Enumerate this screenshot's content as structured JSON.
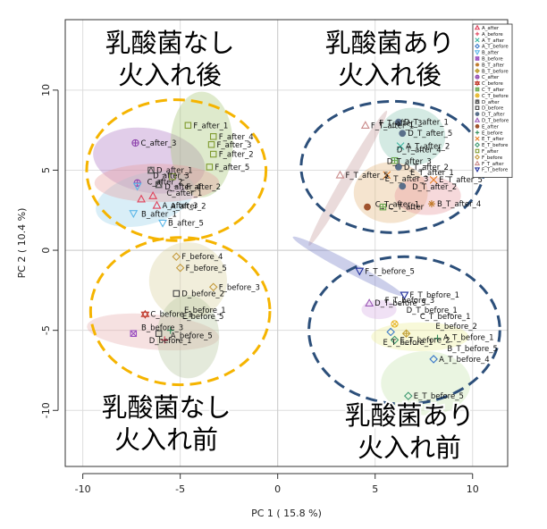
{
  "chart_data": {
    "type": "scatter",
    "title": "",
    "xlabel": "PC 1 ( 15.8 %)",
    "ylabel": "PC 2 ( 10.4 %)",
    "xlim": [
      -10.9,
      11.8
    ],
    "ylim": [
      -13.5,
      14.4
    ],
    "xticks": [
      -10,
      -5,
      0,
      5,
      10
    ],
    "yticks": [
      -10,
      -5,
      0,
      5,
      10
    ],
    "grid": true,
    "legend_position": "top-right",
    "legend": [
      {
        "name": "A_after",
        "color": "#e0405a",
        "marker": "triangle"
      },
      {
        "name": "A_before",
        "color": "#e0405a",
        "marker": "plus"
      },
      {
        "name": "A_T_after",
        "color": "#39b5a0",
        "marker": "cross"
      },
      {
        "name": "A_T_before",
        "color": "#3a78c9",
        "marker": "diamond"
      },
      {
        "name": "B_after",
        "color": "#5bb6e8",
        "marker": "triangle-down"
      },
      {
        "name": "B_before",
        "color": "#9a4fc0",
        "marker": "square-cross"
      },
      {
        "name": "B_T_after",
        "color": "#c07a2a",
        "marker": "star"
      },
      {
        "name": "B_T_before",
        "color": "#c2a23a",
        "marker": "diamond-plus"
      },
      {
        "name": "C_after",
        "color": "#8e44ad",
        "marker": "circle-plus"
      },
      {
        "name": "C_before",
        "color": "#c0392b",
        "marker": "star-of-david"
      },
      {
        "name": "C_T_after",
        "color": "#6aa84f",
        "marker": "square-plus"
      },
      {
        "name": "C_T_before",
        "color": "#e6b422",
        "marker": "circle-cross"
      },
      {
        "name": "D_after",
        "color": "#555555",
        "marker": "triangle-square"
      },
      {
        "name": "D_before",
        "color": "#444444",
        "marker": "square"
      },
      {
        "name": "D_T_after",
        "color": "#5a6f8a",
        "marker": "circle"
      },
      {
        "name": "D_T_before",
        "color": "#9b59b6",
        "marker": "triangle"
      },
      {
        "name": "E_after",
        "color": "#a0522d",
        "marker": "circle"
      },
      {
        "name": "E_before",
        "color": "#2e8b57",
        "marker": "plus"
      },
      {
        "name": "E_T_after",
        "color": "#e67e22",
        "marker": "cross"
      },
      {
        "name": "E_T_before",
        "color": "#3d9970",
        "marker": "diamond"
      },
      {
        "name": "F_after",
        "color": "#7f9a2e",
        "marker": "square"
      },
      {
        "name": "F_before",
        "color": "#c49a3c",
        "marker": "diamond"
      },
      {
        "name": "F_T_after",
        "color": "#c98a8a",
        "marker": "triangle"
      },
      {
        "name": "F_T_before",
        "color": "#1f2e9b",
        "marker": "triangle-down"
      }
    ],
    "group_circles": [
      {
        "label": [
          "乳酸菌なし",
          "火入れ後"
        ],
        "color": "#f5b400",
        "cx": -5.2,
        "cy": 5.0,
        "rx": 4.6,
        "ry": 4.4,
        "label_pos": "top-left"
      },
      {
        "label": [
          "乳酸菌なし",
          "火入れ前"
        ],
        "color": "#f5b400",
        "cx": -5.0,
        "cy": -3.8,
        "rx": 4.6,
        "ry": 4.6,
        "label_pos": "bottom-left"
      },
      {
        "label": [
          "乳酸菌あり",
          "火入れ後"
        ],
        "color": "#2c4f7a",
        "cx": 5.9,
        "cy": 5.2,
        "rx": 4.7,
        "ry": 4.1,
        "label_pos": "top-right"
      },
      {
        "label": [
          "乳酸菌あり",
          "火入れ前"
        ],
        "color": "#2c4f7a",
        "cx": 6.5,
        "cy": -5.0,
        "rx": 4.9,
        "ry": 4.6,
        "label_pos": "bottom-right"
      }
    ],
    "hulls": [
      {
        "color": "#b07cc6",
        "cx": -6.6,
        "cy": 5.6,
        "rx": 2.9,
        "ry": 2.0,
        "rot": 10
      },
      {
        "color": "#9ad1ea",
        "cx": -6.8,
        "cy": 3.2,
        "rx": 2.6,
        "ry": 1.6,
        "rot": -15
      },
      {
        "color": "#a8c77a",
        "cx": -3.9,
        "cy": 6.6,
        "rx": 1.6,
        "ry": 3.3,
        "rot": 0
      },
      {
        "color": "#e8a0a0",
        "cx": -6.2,
        "cy": 4.2,
        "rx": 3.2,
        "ry": 1.2,
        "rot": 0
      },
      {
        "color": "#d9d2a0",
        "cx": -4.6,
        "cy": -1.9,
        "rx": 2.0,
        "ry": 2.4,
        "rot": 0
      },
      {
        "color": "#e8b0b0",
        "cx": -6.4,
        "cy": -5.1,
        "rx": 3.4,
        "ry": 1.1,
        "rot": 5
      },
      {
        "color": "#b8c8a0",
        "cx": -4.6,
        "cy": -5.4,
        "rx": 1.6,
        "ry": 2.6,
        "rot": 0
      },
      {
        "color": "#8ec9b6",
        "cx": 6.9,
        "cy": 7.1,
        "rx": 1.7,
        "ry": 1.8,
        "rot": 0
      },
      {
        "color": "#e6b880",
        "cx": 5.8,
        "cy": 3.6,
        "rx": 1.9,
        "ry": 1.9,
        "rot": 0
      },
      {
        "color": "#e89aa0",
        "cx": 7.7,
        "cy": 3.4,
        "rx": 1.7,
        "ry": 1.2,
        "rot": 0
      },
      {
        "color": "#c9a0a0",
        "cx": 3.6,
        "cy": 4.5,
        "rx": 4.0,
        "ry": 0.35,
        "rot": -60
      },
      {
        "color": "#7a82c8",
        "cx": 3.6,
        "cy": -1.0,
        "rx": 3.2,
        "ry": 0.35,
        "rot": 28
      },
      {
        "color": "#c8e6b0",
        "cx": 7.6,
        "cy": -8.3,
        "rx": 2.3,
        "ry": 2.0,
        "rot": 0
      },
      {
        "color": "#ecef9a",
        "cx": 7.3,
        "cy": -5.4,
        "rx": 2.5,
        "ry": 0.9,
        "rot": 0
      },
      {
        "color": "#d7b0e6",
        "cx": 5.2,
        "cy": -3.7,
        "rx": 0.9,
        "ry": 0.6,
        "rot": 0
      }
    ],
    "points": [
      {
        "series": "F_after",
        "label": "F_after_1",
        "x": -4.6,
        "y": 7.8
      },
      {
        "series": "F_after",
        "label": "F_after_4",
        "x": -3.3,
        "y": 7.1
      },
      {
        "series": "F_after",
        "label": "F_after_3",
        "x": -3.4,
        "y": 6.6
      },
      {
        "series": "F_after",
        "label": "F_after_2",
        "x": -3.3,
        "y": 6.0
      },
      {
        "series": "F_after",
        "label": "F_after_5",
        "x": -3.5,
        "y": 5.2
      },
      {
        "series": "C_after",
        "label": "C_after_3",
        "x": -7.3,
        "y": 6.7
      },
      {
        "series": "D_after",
        "label": "D_after_1",
        "x": -6.5,
        "y": 5.0
      },
      {
        "series": "A_after",
        "label": "",
        "x": -7.0,
        "y": 3.2
      },
      {
        "series": "C_after",
        "label": "",
        "x": -7.2,
        "y": 4.2
      },
      {
        "series": "B_after",
        "label": "",
        "x": -7.2,
        "y": 4.0
      },
      {
        "series": "A_after",
        "label": "",
        "x": -6.4,
        "y": 3.4
      },
      {
        "series": "F_after",
        "label": "",
        "x": -5.4,
        "y": 4.6
      },
      {
        "series": "D_after",
        "label": "",
        "x": -6.1,
        "y": 4.1
      },
      {
        "series": "A_after",
        "label": "A_after_3",
        "x": -6.2,
        "y": 2.8
      },
      {
        "series": "B_after",
        "label": "",
        "x": -7.4,
        "y": 2.3
      },
      {
        "series": "B_after",
        "label": "B_after_5",
        "x": -5.9,
        "y": 1.7
      },
      {
        "series": "F_before",
        "label": "F_before_4",
        "x": -5.2,
        "y": -0.4
      },
      {
        "series": "F_before",
        "label": "F_before_5",
        "x": -5.0,
        "y": -1.1
      },
      {
        "series": "F_before",
        "label": "F_before_3",
        "x": -3.3,
        "y": -2.3
      },
      {
        "series": "D_before",
        "label": "D_before_2",
        "x": -5.2,
        "y": -2.7
      },
      {
        "series": "C_before",
        "label": "C_before_1",
        "x": -6.8,
        "y": -4.0
      },
      {
        "series": "B_before",
        "label": "",
        "x": -7.4,
        "y": -5.2
      },
      {
        "series": "D_before",
        "label": "",
        "x": -6.1,
        "y": -5.2
      },
      {
        "series": "A_before",
        "label": "",
        "x": -5.8,
        "y": -5.6
      },
      {
        "series": "E_before",
        "label": "",
        "x": -5.5,
        "y": -5.0
      },
      {
        "series": "F_T_after",
        "label": "F_T_after_1",
        "x": 4.5,
        "y": 7.8
      },
      {
        "series": "D_T_after",
        "label": "D_T_after_1",
        "x": 6.2,
        "y": 8.0
      },
      {
        "series": "D_T_after",
        "label": "D_T_after_5",
        "x": 6.4,
        "y": 7.3
      },
      {
        "series": "A_T_after",
        "label": "A_T_after_2",
        "x": 6.3,
        "y": 6.5
      },
      {
        "series": "C_T_after",
        "label": "",
        "x": 6.0,
        "y": 5.6
      },
      {
        "series": "D_T_after",
        "label": "D_T_after_2",
        "x": 6.2,
        "y": 5.2
      },
      {
        "series": "E_T_after",
        "label": "",
        "x": 5.6,
        "y": 4.7
      },
      {
        "series": "F_T_after",
        "label": "F_T_after_5",
        "x": 3.2,
        "y": 4.7
      },
      {
        "series": "E_T_after",
        "label": "E_T_after_5",
        "x": 8.0,
        "y": 4.4
      },
      {
        "series": "D_T_after",
        "label": "",
        "x": 6.4,
        "y": 4.0
      },
      {
        "series": "E_after",
        "label": "",
        "x": 4.6,
        "y": 2.7
      },
      {
        "series": "C_T_after",
        "label": "C_T_after",
        "x": 5.4,
        "y": 2.7
      },
      {
        "series": "B_T_after",
        "label": "B_T_after_4",
        "x": 7.9,
        "y": 2.9
      },
      {
        "series": "F_T_before",
        "label": "F_T_before_5",
        "x": 4.2,
        "y": -1.3
      },
      {
        "series": "F_T_before",
        "label": "F_T_before_1",
        "x": 6.5,
        "y": -2.8
      },
      {
        "series": "D_T_before",
        "label": "D_T_before_3",
        "x": 4.7,
        "y": -3.3
      },
      {
        "series": "C_T_before",
        "label": "",
        "x": 6.0,
        "y": -4.6
      },
      {
        "series": "A_T_before",
        "label": "",
        "x": 5.8,
        "y": -5.1
      },
      {
        "series": "E_T_before",
        "label": "E_T_before_2",
        "x": 6.0,
        "y": -5.6
      },
      {
        "series": "B_T_before",
        "label": "",
        "x": 6.6,
        "y": -5.2
      },
      {
        "series": "E_before",
        "label": "",
        "x": 8.2,
        "y": -5.5
      },
      {
        "series": "A_T_before",
        "label": "A_T_before_4",
        "x": 8.0,
        "y": -6.8
      },
      {
        "series": "E_T_before",
        "label": "E_T_before_5",
        "x": 6.7,
        "y": -9.1
      }
    ],
    "dense_labels": [
      {
        "text": "C_after_2",
        "x": -6.7,
        "y": 4.1
      },
      {
        "text": "D_after_3",
        "x": -6.4,
        "y": 4.5
      },
      {
        "text": "D_after_4",
        "x": -5.8,
        "y": 3.8
      },
      {
        "text": "F_after_2",
        "x": -4.7,
        "y": 3.8
      },
      {
        "text": "C_after_1",
        "x": -5.7,
        "y": 3.4
      },
      {
        "text": "B_after_1",
        "x": -7.0,
        "y": 2.1
      },
      {
        "text": "A_after_2",
        "x": -5.5,
        "y": 2.6
      },
      {
        "text": "F_T_after_3",
        "x": 5.2,
        "y": 7.8
      },
      {
        "text": "D_T_after_4",
        "x": 6.1,
        "y": 6.1
      },
      {
        "text": "D_T_after_3",
        "x": 5.6,
        "y": 5.4
      },
      {
        "text": "E_T_after_1",
        "x": 6.8,
        "y": 4.7
      },
      {
        "text": "E_T_after_3",
        "x": 5.5,
        "y": 4.3
      },
      {
        "text": "D_T_after_2",
        "x": 6.9,
        "y": 3.8
      },
      {
        "text": "C_T_after_1",
        "x": 5.0,
        "y": 2.7
      },
      {
        "text": "E_before_1",
        "x": -4.8,
        "y": -3.9
      },
      {
        "text": "E_before_5",
        "x": -4.9,
        "y": -4.3
      },
      {
        "text": "B_before_3",
        "x": -7.0,
        "y": -5.0
      },
      {
        "text": "A_before_5",
        "x": -5.5,
        "y": -5.5
      },
      {
        "text": "D_before_1",
        "x": -6.6,
        "y": -5.8
      },
      {
        "text": "F_T_before_3",
        "x": 5.5,
        "y": -3.3
      },
      {
        "text": "D_T_before_1",
        "x": 6.6,
        "y": -3.9
      },
      {
        "text": "C_T_before_1",
        "x": 7.3,
        "y": -4.3
      },
      {
        "text": "E_before_2",
        "x": 8.1,
        "y": -4.9
      },
      {
        "text": "A_T_before_1",
        "x": 8.5,
        "y": -5.6
      },
      {
        "text": "B_T_before_5",
        "x": 8.7,
        "y": -6.3
      },
      {
        "text": "E_T_before_1",
        "x": 5.4,
        "y": -5.9
      }
    ]
  }
}
